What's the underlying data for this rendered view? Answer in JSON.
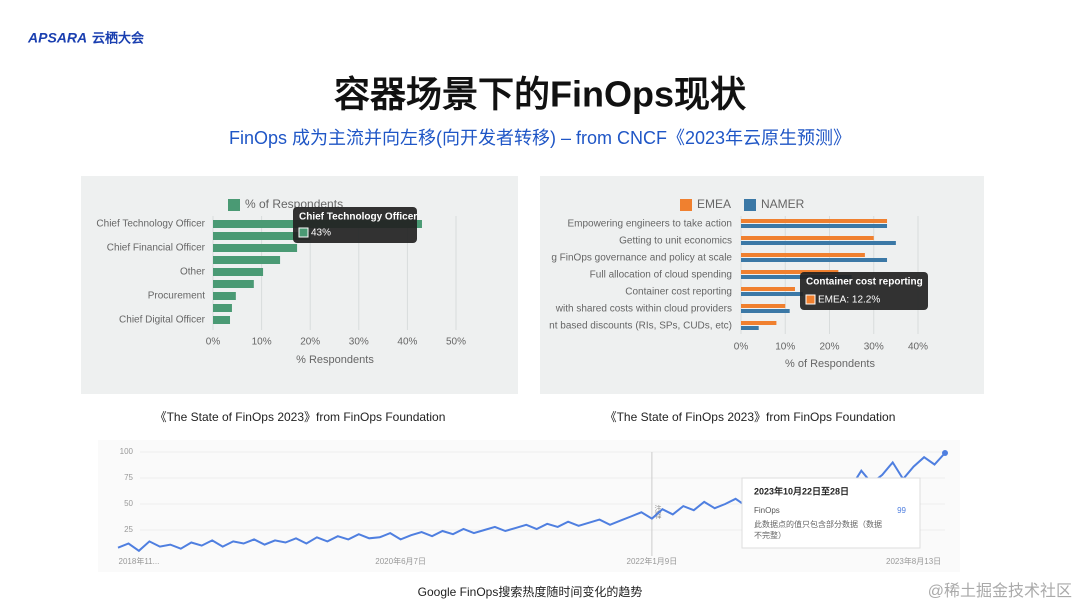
{
  "header": {
    "logo": "APSARA",
    "logo_cn": "云栖大会",
    "title": "容器场景下的FinOps现状",
    "subtitle": "FinOps 成为主流并向左移(向开发者转移) – from CNCF《2023年云原生预测》"
  },
  "captions": [
    "《The State of FinOps 2023》from FinOps Foundation",
    "《The State of FinOps 2023》from FinOps Foundation",
    "Google FinOps搜索热度随时间变化的趋势"
  ],
  "watermark": "@稀土掘金技术社区",
  "chart_data": [
    {
      "type": "bar",
      "orientation": "horizontal",
      "xlabel": "% Respondents",
      "categories": [
        "Chief Technology Officer",
        null,
        "Chief Financial Officer",
        null,
        "Other",
        null,
        "Procurement",
        null,
        "Chief Digital Officer"
      ],
      "series": [
        {
          "name": "% of Respondents",
          "color": "#4a9a74",
          "values": [
            43,
            20,
            17.3,
            13.8,
            10.3,
            8.4,
            4.7,
            3.9,
            3.5
          ]
        }
      ],
      "xlim": [
        0,
        50
      ],
      "xticks": [
        {
          "value": 0,
          "label": "0%"
        },
        {
          "value": 10,
          "label": "10%"
        },
        {
          "value": 20,
          "label": "20%"
        },
        {
          "value": 30,
          "label": "30%"
        },
        {
          "value": 40,
          "label": "40%"
        },
        {
          "value": 50,
          "label": "50%"
        }
      ],
      "grid": true,
      "tooltip": {
        "title": "Chief Technology Officer",
        "text": "43%"
      }
    },
    {
      "type": "bar",
      "orientation": "horizontal",
      "xlabel": "% of Respondents",
      "categories": [
        "Empowering engineers to take action",
        "Getting to unit economics",
        "g FinOps governance and policy at scale",
        "Full allocation of cloud spending",
        "Container cost reporting",
        "with shared costs within cloud providers",
        "nt based discounts (RIs, SPs, CUDs, etc)"
      ],
      "series": [
        {
          "name": "EMEA",
          "color": "#f0802f",
          "values": [
            33,
            30,
            28,
            22,
            12.2,
            10,
            8
          ]
        },
        {
          "name": "NAMER",
          "color": "#3b78a6",
          "values": [
            33,
            35,
            33,
            25,
            14,
            11,
            4
          ]
        }
      ],
      "xlim": [
        0,
        40
      ],
      "xticks": [
        {
          "value": 0,
          "label": "0%"
        },
        {
          "value": 10,
          "label": "10%"
        },
        {
          "value": 20,
          "label": "20%"
        },
        {
          "value": 30,
          "label": "30%"
        },
        {
          "value": 40,
          "label": "40%"
        }
      ],
      "grid": true,
      "tooltip": {
        "title": "Container cost reporting",
        "text": "EMEA: 12.2%"
      }
    },
    {
      "type": "line",
      "color": "#4f7fe0",
      "categories": [
        null,
        null,
        "2018年11...",
        null,
        null,
        null,
        null,
        null,
        null,
        null,
        null,
        null,
        null,
        null,
        null,
        null,
        null,
        null,
        null,
        null,
        null,
        null,
        null,
        null,
        null,
        null,
        null,
        "2020年6月7日",
        null,
        null,
        null,
        null,
        null,
        null,
        null,
        null,
        null,
        null,
        null,
        null,
        null,
        null,
        null,
        null,
        null,
        null,
        null,
        null,
        null,
        null,
        null,
        "2022年1月9日",
        null,
        null,
        null,
        null,
        null,
        null,
        null,
        null,
        null,
        null,
        null,
        null,
        null,
        null,
        null,
        null,
        null,
        null,
        null,
        null,
        null,
        null,
        null,
        null,
        "2023年8月13日",
        null,
        null,
        null
      ],
      "values": [
        8,
        12,
        5,
        14,
        9,
        11,
        7,
        13,
        10,
        15,
        9,
        14,
        12,
        16,
        11,
        15,
        13,
        17,
        12,
        18,
        14,
        19,
        16,
        21,
        17,
        18,
        22,
        16,
        20,
        23,
        19,
        24,
        21,
        26,
        22,
        25,
        28,
        24,
        27,
        30,
        26,
        31,
        28,
        33,
        29,
        32,
        35,
        30,
        34,
        38,
        42,
        36,
        45,
        40,
        48,
        44,
        52,
        46,
        50,
        55,
        48,
        53,
        58,
        51,
        62,
        56,
        60,
        64,
        58,
        72,
        66,
        82,
        70,
        78,
        90,
        74,
        86,
        95,
        88,
        99
      ],
      "ylim": [
        0,
        100
      ],
      "yticks": [
        25,
        50,
        75,
        100
      ],
      "grid": true,
      "annotation": "注释",
      "tooltip": {
        "title": "2023年10月22日至28日",
        "series": "FinOps",
        "value": "99",
        "note": [
          "此数据点的值只包含部分数据（数据",
          "不完整）"
        ]
      }
    }
  ]
}
